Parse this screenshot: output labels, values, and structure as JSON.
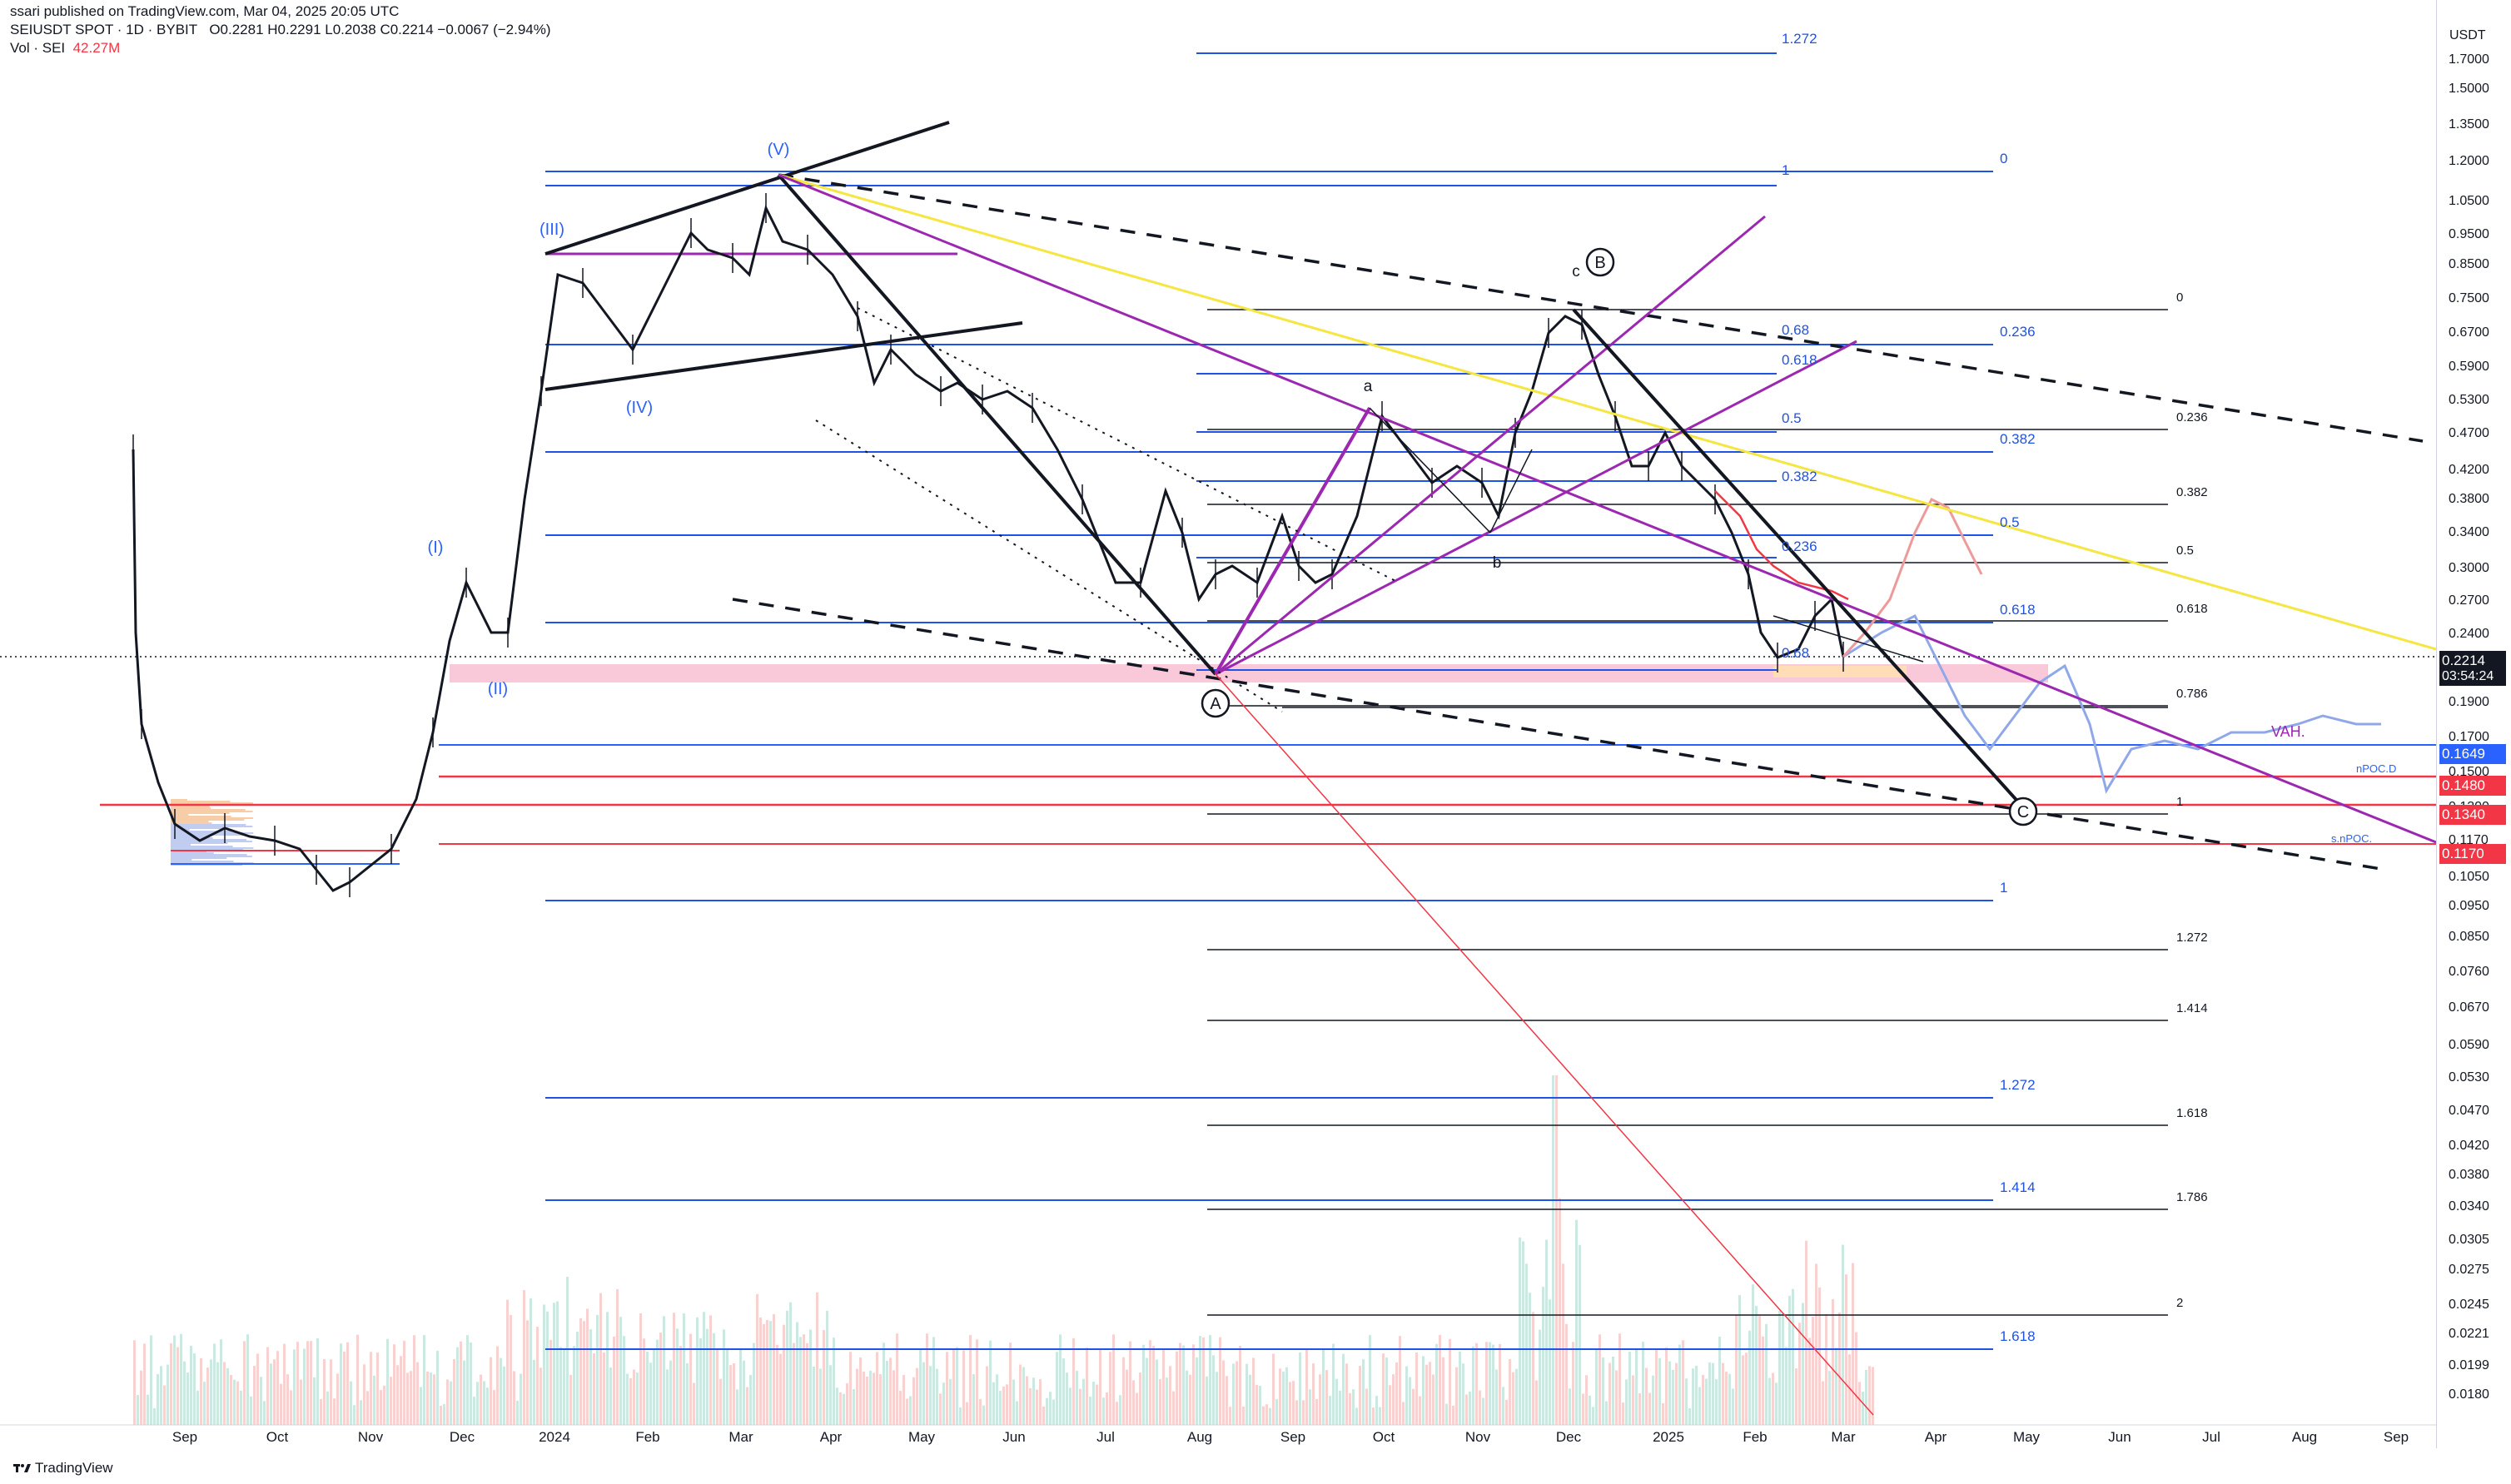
{
  "header": {
    "published": "ssari published on TradingView.com, Mar 04, 2025 20:05 UTC",
    "symbol_line": "SEIUSDT SPOT · 1D · BYBIT",
    "ohlc": "O0.2281 H0.2291 L0.2038 C0.2214 −0.0067 (−2.94%)",
    "vol_label": "Vol · SEI",
    "vol_value": "42.27M"
  },
  "footer": {
    "watermark": "TradingView"
  },
  "price_axis": {
    "currency": "USDT",
    "ticks": [
      "1.7000",
      "1.5000",
      "1.3500",
      "1.2000",
      "1.0500",
      "0.9500",
      "0.8500",
      "0.7500",
      "0.6700",
      "0.5900",
      "0.5300",
      "0.4700",
      "0.4200",
      "0.3800",
      "0.3400",
      "0.3000",
      "0.2700",
      "0.2400",
      "0.1900",
      "0.1700",
      "0.1500",
      "0.1300",
      "0.1170",
      "0.1050",
      "0.0950",
      "0.0850",
      "0.0760",
      "0.0670",
      "0.0590",
      "0.0530",
      "0.0470",
      "0.0420",
      "0.0380",
      "0.0340",
      "0.0305",
      "0.0275",
      "0.0245",
      "0.0221",
      "0.0199",
      "0.0180"
    ],
    "scale": "log",
    "badges": [
      {
        "label": "0.2214",
        "color": "#131722",
        "sub": "03:54:24"
      },
      {
        "label": "0.1649",
        "color": "#2962ff"
      },
      {
        "label": "0.1480",
        "color": "#f23645"
      },
      {
        "label": "0.1340",
        "color": "#f23645"
      },
      {
        "label": "0.1170",
        "color": "#f23645"
      }
    ]
  },
  "time_axis": {
    "labels": [
      "Sep",
      "Oct",
      "Nov",
      "Dec",
      "2024",
      "Feb",
      "Mar",
      "Apr",
      "May",
      "Jun",
      "Jul",
      "Aug",
      "Sep",
      "Oct",
      "Nov",
      "Dec",
      "2025",
      "Feb",
      "Mar",
      "Apr",
      "May",
      "Jun",
      "Jul",
      "Aug",
      "Sep"
    ]
  },
  "annotations": {
    "waves": [
      "(I)",
      "(II)",
      "(III)",
      "(IV)",
      "(V)"
    ],
    "abc": [
      "A",
      "B",
      "C"
    ],
    "lower_abc": [
      "a",
      "b",
      "c"
    ],
    "right_labels": [
      "VAH.",
      "nPOC.D",
      "s.nPOC."
    ]
  },
  "fib_blue_top": [
    {
      "label": "1.272"
    },
    {
      "label": "1"
    },
    {
      "label": "0.68"
    },
    {
      "label": "0.618"
    },
    {
      "label": "0.5"
    },
    {
      "label": "0.382"
    },
    {
      "label": "0.236"
    },
    {
      "label": "0.68"
    }
  ],
  "fib_blue_right": [
    "0",
    "0.236",
    "0.382",
    "0.5",
    "0.618",
    "1",
    "1.272",
    "1.414",
    "1.618"
  ],
  "fib_black_right": [
    "0",
    "0.236",
    "0.382",
    "0.5",
    "0.618",
    "0.786",
    "1",
    "1.272",
    "1.414",
    "1.618",
    "1.786",
    "2"
  ],
  "colors": {
    "blue": "#2962ff",
    "fib_blue": "#1e53e5",
    "red": "#f23645",
    "purple": "#9c27b0",
    "yellow": "#f5e642",
    "black": "#131722",
    "pink_zone": "#f8bbd0",
    "projection_blue": "#90a8e8",
    "projection_red": "#ef9a9a"
  }
}
